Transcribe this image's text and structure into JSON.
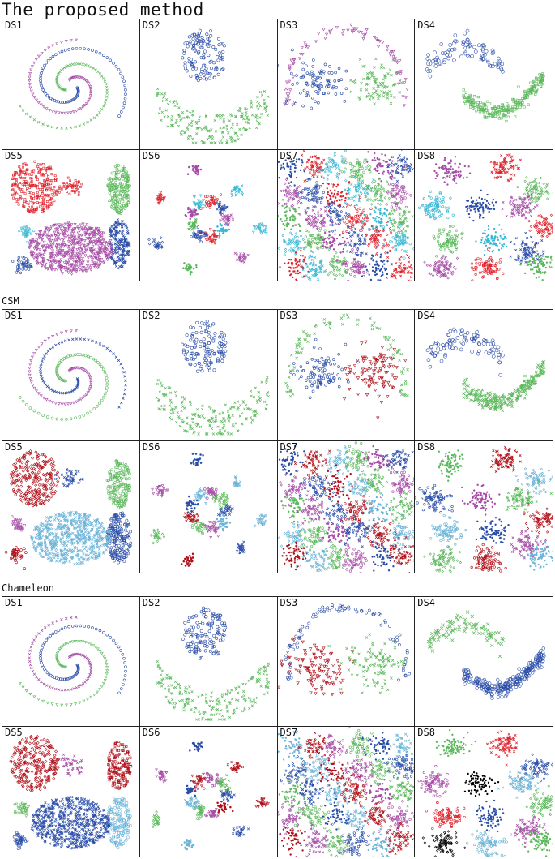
{
  "figure": {
    "sections": [
      {
        "title": "The proposed method",
        "method": "proposed"
      },
      {
        "title": "CSM",
        "method": "csm"
      },
      {
        "title": "Chameleon",
        "method": "chameleon"
      }
    ],
    "panel_labels": [
      "DS1",
      "DS2",
      "DS3",
      "DS4",
      "DS5",
      "DS6",
      "DS7",
      "DS8"
    ]
  },
  "colors": {
    "blue": "#2a4da8",
    "green": "#5cb85c",
    "magenta": "#a64ca6",
    "red": "#e0202a",
    "darkred": "#b0101a",
    "cyan": "#3bb8d4",
    "lightblue": "#6cb4d8",
    "black": "#000000"
  },
  "chart_data": {
    "type": "scatter",
    "description_of_points": "Each panel shows a 2-D synthetic dataset whose points are coloured and shaped by cluster assignment.",
    "grid": false,
    "axes_visible": false,
    "results": {
      "proposed": {
        "DS1": {
          "clusters": [
            {
              "color": "blue",
              "marker": "circle"
            },
            {
              "color": "green",
              "marker": "x"
            },
            {
              "color": "magenta",
              "marker": "triangle"
            }
          ]
        },
        "DS2": {
          "clusters": [
            {
              "color": "blue",
              "marker": "circle"
            },
            {
              "color": "green",
              "marker": "x"
            }
          ]
        },
        "DS3": {
          "clusters": [
            {
              "color": "blue",
              "marker": "circle"
            },
            {
              "color": "green",
              "marker": "x"
            },
            {
              "color": "magenta",
              "marker": "triangle"
            }
          ]
        },
        "DS4": {
          "clusters": [
            {
              "color": "blue",
              "marker": "circle"
            },
            {
              "color": "green",
              "marker": "square"
            }
          ]
        },
        "DS5": {
          "clusters": [
            {
              "color": "red",
              "marker": "square"
            },
            {
              "color": "green",
              "marker": "circle"
            },
            {
              "color": "blue",
              "marker": "x"
            },
            {
              "color": "magenta",
              "marker": "triangle"
            },
            {
              "color": "cyan",
              "marker": "square"
            }
          ]
        },
        "DS6": {
          "clusters": [
            {
              "color": "magenta"
            },
            {
              "color": "cyan"
            },
            {
              "color": "red"
            },
            {
              "color": "blue"
            },
            {
              "color": "green"
            }
          ]
        },
        "DS7": {
          "clusters": [
            {
              "color": "blue"
            },
            {
              "color": "green"
            },
            {
              "color": "red"
            },
            {
              "color": "magenta"
            },
            {
              "color": "cyan"
            }
          ]
        },
        "DS8": {
          "clusters": [
            {
              "color": "magenta"
            },
            {
              "color": "red"
            },
            {
              "color": "green"
            },
            {
              "color": "cyan"
            },
            {
              "color": "blue"
            }
          ]
        }
      },
      "csm": {
        "DS1": {
          "clusters": [
            {
              "color": "blue",
              "marker": "x"
            },
            {
              "color": "green",
              "marker": "circle"
            },
            {
              "color": "magenta",
              "marker": "triangle"
            }
          ]
        },
        "DS2": {
          "clusters": [
            {
              "color": "blue",
              "marker": "circle"
            },
            {
              "color": "green",
              "marker": "x"
            }
          ]
        },
        "DS3": {
          "clusters": [
            {
              "color": "green",
              "marker": "x"
            },
            {
              "color": "blue",
              "marker": "circle"
            },
            {
              "color": "darkred",
              "marker": "triangle"
            }
          ]
        },
        "DS4": {
          "clusters": [
            {
              "color": "blue",
              "marker": "circle"
            },
            {
              "color": "green",
              "marker": "x"
            }
          ]
        },
        "DS5": {
          "clusters": [
            {
              "color": "darkred",
              "marker": "diamond"
            },
            {
              "color": "blue",
              "marker": "x"
            },
            {
              "color": "green",
              "marker": "circle"
            },
            {
              "color": "magenta",
              "marker": "square"
            },
            {
              "color": "lightblue",
              "marker": "x"
            }
          ]
        },
        "DS6": {
          "clusters": [
            {
              "color": "blue"
            },
            {
              "color": "lightblue"
            },
            {
              "color": "magenta"
            },
            {
              "color": "green"
            },
            {
              "color": "darkred"
            }
          ]
        },
        "DS7": {
          "clusters": [
            {
              "color": "blue"
            },
            {
              "color": "green"
            },
            {
              "color": "darkred"
            },
            {
              "color": "magenta"
            },
            {
              "color": "lightblue"
            }
          ]
        },
        "DS8": {
          "clusters": [
            {
              "color": "green"
            },
            {
              "color": "darkred"
            },
            {
              "color": "lightblue"
            },
            {
              "color": "blue"
            },
            {
              "color": "magenta"
            }
          ]
        }
      },
      "chameleon": {
        "DS1": {
          "clusters": [
            {
              "color": "blue",
              "marker": "circle"
            },
            {
              "color": "green",
              "marker": "triangle"
            },
            {
              "color": "magenta",
              "marker": "x"
            }
          ]
        },
        "DS2": {
          "clusters": [
            {
              "color": "blue",
              "marker": "circle"
            },
            {
              "color": "green",
              "marker": "x"
            }
          ]
        },
        "DS3": {
          "clusters": [
            {
              "color": "blue",
              "marker": "circle"
            },
            {
              "color": "darkred",
              "marker": "triangle"
            },
            {
              "color": "green",
              "marker": "x"
            }
          ]
        },
        "DS4": {
          "clusters": [
            {
              "color": "green",
              "marker": "x"
            },
            {
              "color": "blue",
              "marker": "circle"
            }
          ]
        },
        "DS5": {
          "clusters": [
            {
              "color": "darkred",
              "marker": "diamond"
            },
            {
              "color": "magenta",
              "marker": "x"
            },
            {
              "color": "green",
              "marker": "triangle"
            },
            {
              "color": "blue",
              "marker": "x"
            },
            {
              "color": "lightblue",
              "marker": "circle"
            }
          ]
        },
        "DS6": {
          "clusters": [
            {
              "color": "blue"
            },
            {
              "color": "darkred"
            },
            {
              "color": "magenta"
            },
            {
              "color": "green"
            },
            {
              "color": "lightblue"
            }
          ]
        },
        "DS7": {
          "clusters": [
            {
              "color": "lightblue"
            },
            {
              "color": "green"
            },
            {
              "color": "darkred"
            },
            {
              "color": "blue"
            },
            {
              "color": "magenta"
            }
          ]
        },
        "DS8": {
          "clusters": [
            {
              "color": "green"
            },
            {
              "color": "red"
            },
            {
              "color": "blue"
            },
            {
              "color": "magenta"
            },
            {
              "color": "black"
            },
            {
              "color": "lightblue"
            }
          ]
        }
      }
    }
  }
}
